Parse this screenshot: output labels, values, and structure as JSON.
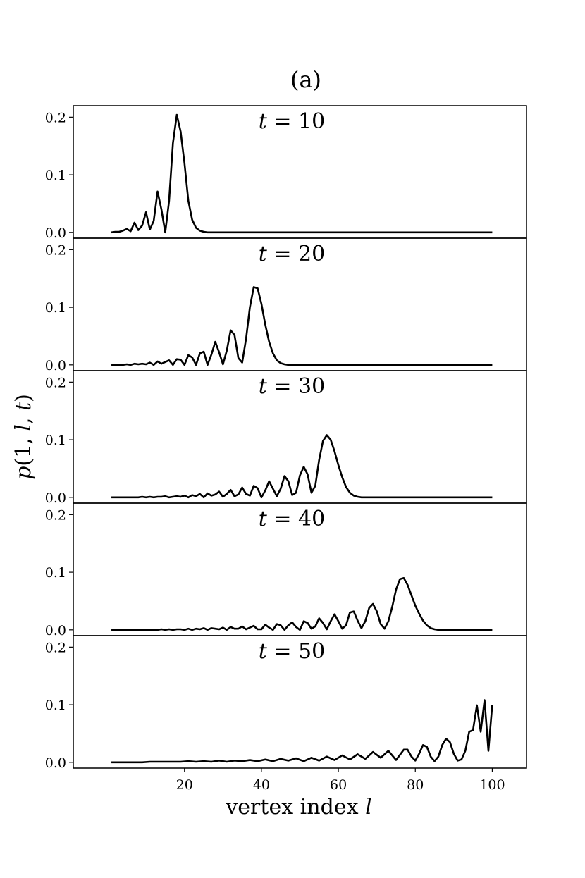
{
  "chart_data": {
    "type": "line",
    "title": "(a)",
    "xlabel": "vertex index l",
    "ylabel": "p(1, l, t)",
    "xlim": [
      -8.9,
      108.9
    ],
    "ylim": [
      -0.01,
      0.22
    ],
    "x_ticks": [
      20,
      40,
      60,
      80,
      100
    ],
    "y_ticks": [
      0.0,
      0.1,
      0.2
    ],
    "grid": false,
    "legend": "none",
    "line_color": "#000000",
    "panels": [
      {
        "label": "t = 10",
        "x": [
          1,
          2,
          3,
          4,
          5,
          6,
          7,
          8,
          9,
          10,
          11,
          12,
          13,
          14,
          15,
          16,
          17,
          18,
          19,
          20,
          21,
          22,
          23,
          24,
          25,
          26,
          27,
          28,
          29,
          30,
          100
        ],
        "y": [
          0.0,
          0.001,
          0.001,
          0.003,
          0.006,
          0.002,
          0.017,
          0.004,
          0.012,
          0.035,
          0.005,
          0.02,
          0.071,
          0.04,
          0.0,
          0.055,
          0.155,
          0.204,
          0.175,
          0.12,
          0.055,
          0.022,
          0.008,
          0.003,
          0.001,
          0.0,
          0.0,
          0.0,
          0.0,
          0.0,
          0.0
        ]
      },
      {
        "label": "t = 20",
        "x": [
          1,
          2,
          3,
          4,
          5,
          6,
          7,
          8,
          9,
          10,
          11,
          12,
          13,
          14,
          15,
          16,
          17,
          18,
          19,
          20,
          21,
          22,
          23,
          24,
          25,
          26,
          27,
          28,
          29,
          30,
          31,
          32,
          33,
          34,
          35,
          36,
          37,
          38,
          39,
          40,
          41,
          42,
          43,
          44,
          45,
          46,
          47,
          48,
          49,
          50,
          100
        ],
        "y": [
          0.0,
          0.0,
          0.0,
          0.0,
          0.001,
          0.0,
          0.002,
          0.001,
          0.002,
          0.001,
          0.004,
          0.0,
          0.006,
          0.002,
          0.005,
          0.008,
          0.0,
          0.01,
          0.009,
          0.0,
          0.017,
          0.013,
          0.0,
          0.02,
          0.023,
          0.0,
          0.018,
          0.04,
          0.022,
          0.001,
          0.025,
          0.06,
          0.052,
          0.012,
          0.004,
          0.045,
          0.1,
          0.135,
          0.133,
          0.106,
          0.07,
          0.04,
          0.02,
          0.008,
          0.003,
          0.001,
          0.0,
          0.0,
          0.0,
          0.0,
          0.0
        ]
      },
      {
        "label": "t = 30",
        "x": [
          1,
          2,
          3,
          4,
          5,
          6,
          7,
          8,
          9,
          10,
          11,
          12,
          13,
          14,
          15,
          16,
          17,
          18,
          19,
          20,
          21,
          22,
          23,
          24,
          25,
          26,
          27,
          28,
          29,
          30,
          31,
          32,
          33,
          34,
          35,
          36,
          37,
          38,
          39,
          40,
          41,
          42,
          43,
          44,
          45,
          46,
          47,
          48,
          49,
          50,
          51,
          52,
          53,
          54,
          55,
          56,
          57,
          58,
          59,
          60,
          61,
          62,
          63,
          64,
          65,
          66,
          67,
          68,
          69,
          70,
          100
        ],
        "y": [
          0.0,
          0.0,
          0.0,
          0.0,
          0.0,
          0.0,
          0.0,
          0.0,
          0.001,
          0.0,
          0.001,
          0.0,
          0.001,
          0.001,
          0.002,
          0.0,
          0.001,
          0.002,
          0.001,
          0.003,
          0.0,
          0.004,
          0.002,
          0.006,
          0.0,
          0.007,
          0.003,
          0.005,
          0.01,
          0.001,
          0.006,
          0.013,
          0.002,
          0.005,
          0.017,
          0.006,
          0.003,
          0.02,
          0.016,
          0.0,
          0.012,
          0.028,
          0.015,
          0.002,
          0.015,
          0.037,
          0.028,
          0.004,
          0.008,
          0.038,
          0.053,
          0.04,
          0.008,
          0.02,
          0.065,
          0.098,
          0.108,
          0.1,
          0.08,
          0.056,
          0.035,
          0.018,
          0.008,
          0.003,
          0.001,
          0.0,
          0.0,
          0.0,
          0.0,
          0.0,
          0.0
        ]
      },
      {
        "label": "t = 40",
        "x": [
          1,
          2,
          3,
          4,
          5,
          6,
          7,
          8,
          9,
          10,
          11,
          12,
          13,
          14,
          15,
          16,
          17,
          18,
          19,
          20,
          21,
          22,
          23,
          24,
          25,
          26,
          27,
          28,
          29,
          30,
          31,
          32,
          33,
          34,
          35,
          36,
          37,
          38,
          39,
          40,
          41,
          42,
          43,
          44,
          45,
          46,
          47,
          48,
          49,
          50,
          51,
          52,
          53,
          54,
          55,
          56,
          57,
          58,
          59,
          60,
          61,
          62,
          63,
          64,
          65,
          66,
          67,
          68,
          69,
          70,
          71,
          72,
          73,
          74,
          75,
          76,
          77,
          78,
          79,
          80,
          81,
          82,
          83,
          84,
          85,
          86,
          87,
          88,
          89,
          90,
          100
        ],
        "y": [
          0.0,
          0.0,
          0.0,
          0.0,
          0.0,
          0.0,
          0.0,
          0.0,
          0.0,
          0.0,
          0.0,
          0.0,
          0.0,
          0.001,
          0.0,
          0.001,
          0.0,
          0.001,
          0.001,
          0.0,
          0.002,
          0.0,
          0.002,
          0.001,
          0.003,
          0.0,
          0.003,
          0.002,
          0.001,
          0.004,
          0.0,
          0.005,
          0.002,
          0.002,
          0.006,
          0.001,
          0.004,
          0.007,
          0.001,
          0.001,
          0.009,
          0.004,
          0.0,
          0.01,
          0.008,
          0.0,
          0.008,
          0.013,
          0.005,
          0.0,
          0.015,
          0.012,
          0.002,
          0.006,
          0.02,
          0.012,
          0.001,
          0.015,
          0.027,
          0.015,
          0.002,
          0.008,
          0.03,
          0.032,
          0.016,
          0.003,
          0.015,
          0.038,
          0.045,
          0.032,
          0.01,
          0.002,
          0.015,
          0.04,
          0.07,
          0.088,
          0.09,
          0.078,
          0.06,
          0.042,
          0.028,
          0.016,
          0.008,
          0.003,
          0.001,
          0.0,
          0.0,
          0.0,
          0.0,
          0.0,
          0.0
        ]
      },
      {
        "label": "t = 50",
        "x": [
          1,
          3,
          5,
          7,
          9,
          11,
          13,
          15,
          17,
          19,
          21,
          23,
          25,
          27,
          29,
          31,
          33,
          35,
          37,
          39,
          41,
          43,
          45,
          47,
          49,
          51,
          53,
          55,
          57,
          59,
          61,
          63,
          65,
          67,
          69,
          71,
          73,
          75,
          77,
          78,
          79,
          80,
          81,
          82,
          83,
          84,
          85,
          86,
          87,
          88,
          89,
          90,
          91,
          92,
          93,
          94,
          95,
          96,
          97,
          98,
          99,
          100
        ],
        "y": [
          0.0,
          0.0,
          0.0,
          0.0,
          0.0,
          0.001,
          0.001,
          0.001,
          0.001,
          0.001,
          0.002,
          0.001,
          0.002,
          0.001,
          0.003,
          0.001,
          0.003,
          0.002,
          0.004,
          0.002,
          0.005,
          0.002,
          0.006,
          0.003,
          0.007,
          0.002,
          0.008,
          0.003,
          0.01,
          0.004,
          0.012,
          0.005,
          0.014,
          0.006,
          0.018,
          0.008,
          0.02,
          0.004,
          0.022,
          0.022,
          0.01,
          0.003,
          0.015,
          0.03,
          0.027,
          0.01,
          0.002,
          0.01,
          0.03,
          0.041,
          0.035,
          0.015,
          0.003,
          0.005,
          0.02,
          0.053,
          0.056,
          0.099,
          0.053,
          0.108,
          0.02,
          0.1
        ]
      }
    ]
  }
}
